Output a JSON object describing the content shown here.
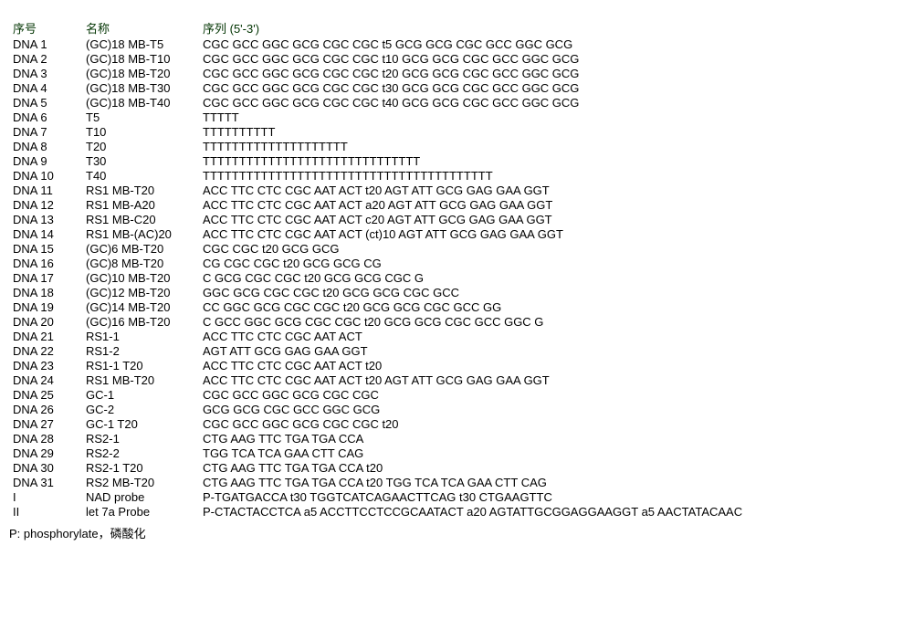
{
  "header": {
    "id": "序号",
    "name": "名称",
    "seq": "序列 (5'-3')"
  },
  "rows": [
    {
      "id": "DNA 1",
      "name": "(GC)18 MB-T5",
      "seq": "CGC GCC GGC GCG CGC CGC t5 GCG GCG CGC GCC GGC GCG"
    },
    {
      "id": "DNA 2",
      "name": "(GC)18 MB-T10",
      "seq": "CGC GCC GGC GCG CGC CGC t10 GCG GCG CGC GCC GGC GCG"
    },
    {
      "id": "DNA 3",
      "name": "(GC)18 MB-T20",
      "seq": "CGC GCC GGC GCG CGC CGC t20 GCG GCG CGC GCC GGC GCG"
    },
    {
      "id": "DNA 4",
      "name": "(GC)18 MB-T30",
      "seq": "CGC GCC GGC GCG CGC CGC t30 GCG GCG CGC GCC GGC GCG"
    },
    {
      "id": "DNA 5",
      "name": "(GC)18 MB-T40",
      "seq": "CGC GCC GGC GCG CGC CGC t40 GCG GCG CGC GCC GGC GCG"
    },
    {
      "id": "DNA 6",
      "name": "T5",
      "seq": "TTTTT"
    },
    {
      "id": "DNA 7",
      "name": "T10",
      "seq": "TTTTTTTTTT"
    },
    {
      "id": "DNA 8",
      "name": "T20",
      "seq": "TTTTTTTTTTTTTTTTTTTT"
    },
    {
      "id": "DNA 9",
      "name": "T30",
      "seq": "TTTTTTTTTTTTTTTTTTTTTTTTTTTTTT"
    },
    {
      "id": "DNA 10",
      "name": "T40",
      "seq": "TTTTTTTTTTTTTTTTTTTTTTTTTTTTTTTTTTTTTTTT"
    },
    {
      "id": "DNA 11",
      "name": "RS1 MB-T20",
      "seq": "ACC TTC CTC CGC AAT ACT t20 AGT ATT GCG GAG GAA GGT"
    },
    {
      "id": "DNA 12",
      "name": "RS1 MB-A20",
      "seq": "ACC TTC CTC CGC AAT ACT a20 AGT ATT GCG GAG GAA GGT"
    },
    {
      "id": "DNA 13",
      "name": "RS1 MB-C20",
      "seq": "ACC TTC CTC CGC AAT ACT c20 AGT ATT GCG GAG GAA GGT"
    },
    {
      "id": "DNA 14",
      "name": "RS1 MB-(AC)20",
      "seq": "ACC TTC CTC CGC AAT ACT (ct)10 AGT ATT GCG GAG GAA GGT"
    },
    {
      "id": "DNA 15",
      "name": "(GC)6 MB-T20",
      "seq": "CGC CGC t20 GCG GCG"
    },
    {
      "id": "DNA 16",
      "name": "(GC)8 MB-T20",
      "seq": "CG CGC CGC t20 GCG GCG CG"
    },
    {
      "id": "DNA 17",
      "name": "(GC)10 MB-T20",
      "seq": "C GCG CGC CGC t20 GCG GCG CGC G"
    },
    {
      "id": "DNA 18",
      "name": "(GC)12 MB-T20",
      "seq": "GGC GCG CGC CGC t20 GCG GCG CGC GCC"
    },
    {
      "id": "DNA 19",
      "name": "(GC)14 MB-T20",
      "seq": "CC GGC GCG CGC CGC t20 GCG GCG CGC GCC GG"
    },
    {
      "id": "DNA 20",
      "name": "(GC)16 MB-T20",
      "seq": "C GCC GGC GCG CGC CGC t20 GCG GCG CGC GCC GGC G"
    },
    {
      "id": "DNA 21",
      "name": "RS1-1",
      "seq": "ACC TTC CTC CGC AAT ACT"
    },
    {
      "id": "DNA 22",
      "name": "RS1-2",
      "seq": "AGT ATT GCG GAG GAA GGT"
    },
    {
      "id": "DNA 23",
      "name": "RS1-1 T20",
      "seq": "ACC TTC CTC CGC AAT ACT t20"
    },
    {
      "id": "DNA 24",
      "name": "RS1 MB-T20",
      "seq": "ACC TTC CTC CGC AAT ACT t20 AGT ATT GCG GAG GAA GGT"
    },
    {
      "id": "DNA 25",
      "name": "GC-1",
      "seq": "CGC GCC GGC GCG CGC CGC"
    },
    {
      "id": "DNA 26",
      "name": "GC-2",
      "seq": "GCG GCG CGC GCC GGC GCG"
    },
    {
      "id": "DNA 27",
      "name": "GC-1 T20",
      "seq": "CGC GCC GGC GCG CGC CGC t20"
    },
    {
      "id": "DNA 28",
      "name": "RS2-1",
      "seq": "CTG AAG TTC TGA TGA CCA"
    },
    {
      "id": "DNA 29",
      "name": "RS2-2",
      "seq": "TGG TCA TCA GAA CTT CAG"
    },
    {
      "id": "DNA 30",
      "name": "RS2-1 T20",
      "seq": "CTG AAG TTC TGA TGA CCA  t20"
    },
    {
      "id": "DNA 31",
      "name": "RS2 MB-T20",
      "seq": "CTG AAG TTC TGA TGA CCA t20 TGG TCA TCA GAA CTT CAG"
    },
    {
      "id": "I",
      "name": "NAD probe",
      "seq": "P-TGATGACCA t30 TGGTCATCAGAACTTCAG t30 CTGAAGTTC"
    },
    {
      "id": "II",
      "name": "let 7a Probe",
      "seq": "P-CTACTACCTCA a5 ACCTTCCTCCGCAATACT a20 AGTATTGCGGAGGAAGGT a5 AACTATACAAC"
    }
  ],
  "footer": "P: phosphorylate，磷酸化"
}
